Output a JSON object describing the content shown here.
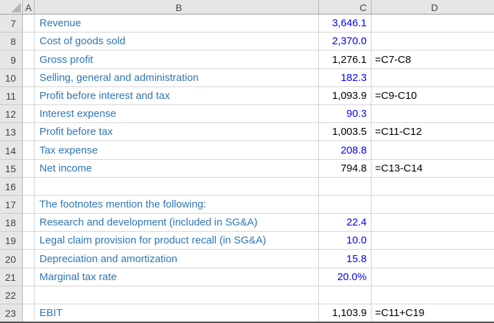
{
  "app": {
    "kind": "excel-worksheet-grid"
  },
  "colors": {
    "label_blue": "#2e75b6",
    "input_blue": "#0000ff",
    "formula_black": "#000000",
    "header_bg": "#e6e6e6",
    "gridline": "#d4d4d4"
  },
  "column_headers": [
    "A",
    "B",
    "C",
    "D"
  ],
  "rows": [
    {
      "num": "7",
      "label": "Revenue",
      "value": "3,646.1",
      "value_type": "input",
      "formula": ""
    },
    {
      "num": "8",
      "label": "Cost of goods sold",
      "value": "2,370.0",
      "value_type": "input",
      "formula": ""
    },
    {
      "num": "9",
      "label": "Gross profit",
      "value": "1,276.1",
      "value_type": "calc",
      "formula": "=C7-C8"
    },
    {
      "num": "10",
      "label": "Selling, general and administration",
      "value": "182.3",
      "value_type": "input",
      "formula": ""
    },
    {
      "num": "11",
      "label": "Profit before interest and tax",
      "value": "1,093.9",
      "value_type": "calc",
      "formula": "=C9-C10"
    },
    {
      "num": "12",
      "label": "Interest expense",
      "value": "90.3",
      "value_type": "input",
      "formula": ""
    },
    {
      "num": "13",
      "label": "Profit before tax",
      "value": "1,003.5",
      "value_type": "calc",
      "formula": "=C11-C12"
    },
    {
      "num": "14",
      "label": "Tax expense",
      "value": "208.8",
      "value_type": "input",
      "formula": ""
    },
    {
      "num": "15",
      "label": "Net income",
      "value": "794.8",
      "value_type": "calc",
      "formula": "=C13-C14"
    },
    {
      "num": "16",
      "label": "",
      "value": "",
      "value_type": "",
      "formula": ""
    },
    {
      "num": "17",
      "label": "The footnotes mention the following:",
      "value": "",
      "value_type": "",
      "formula": ""
    },
    {
      "num": "18",
      "label": "Research and development (included in SG&A)",
      "value": "22.4",
      "value_type": "input",
      "formula": ""
    },
    {
      "num": "19",
      "label": "Legal claim provision for product recall (in SG&A)",
      "value": "10.0",
      "value_type": "input",
      "formula": ""
    },
    {
      "num": "20",
      "label": "Depreciation and amortization",
      "value": "15.8",
      "value_type": "input",
      "formula": ""
    },
    {
      "num": "21",
      "label": "Marginal tax rate",
      "value": "20.0%",
      "value_type": "input",
      "formula": ""
    },
    {
      "num": "22",
      "label": "",
      "value": "",
      "value_type": "",
      "formula": ""
    },
    {
      "num": "23",
      "label": "EBIT",
      "value": "1,103.9",
      "value_type": "calc",
      "formula": "=C11+C19"
    }
  ]
}
